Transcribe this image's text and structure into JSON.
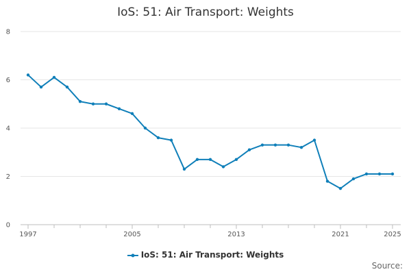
{
  "chart_data": {
    "type": "line",
    "title": "IoS: 51: Air Transport: Weights",
    "xlabel": "",
    "ylabel": "",
    "xlim": [
      1997,
      2025
    ],
    "ylim": [
      0,
      8
    ],
    "y_ticks": [
      0,
      2,
      4,
      6,
      8
    ],
    "x_ticks": [
      1997,
      2005,
      2013,
      2021,
      2025
    ],
    "grid": true,
    "legend_position": "bottom",
    "series": [
      {
        "name": "IoS: 51: Air Transport: Weights",
        "color": "#0f7fb9",
        "x": [
          1997,
          1998,
          1999,
          2000,
          2001,
          2002,
          2003,
          2004,
          2005,
          2006,
          2007,
          2008,
          2009,
          2010,
          2011,
          2012,
          2013,
          2014,
          2015,
          2016,
          2017,
          2018,
          2019,
          2020,
          2021,
          2022,
          2023,
          2024,
          2025
        ],
        "values": [
          6.2,
          5.7,
          6.1,
          5.7,
          5.1,
          5.0,
          5.0,
          4.8,
          4.6,
          4.0,
          3.6,
          3.5,
          2.3,
          2.7,
          2.7,
          2.4,
          2.7,
          3.1,
          3.3,
          3.3,
          3.3,
          3.2,
          3.5,
          1.8,
          1.5,
          1.9,
          2.1,
          2.1,
          2.1
        ]
      }
    ],
    "source_label": "Source:"
  }
}
